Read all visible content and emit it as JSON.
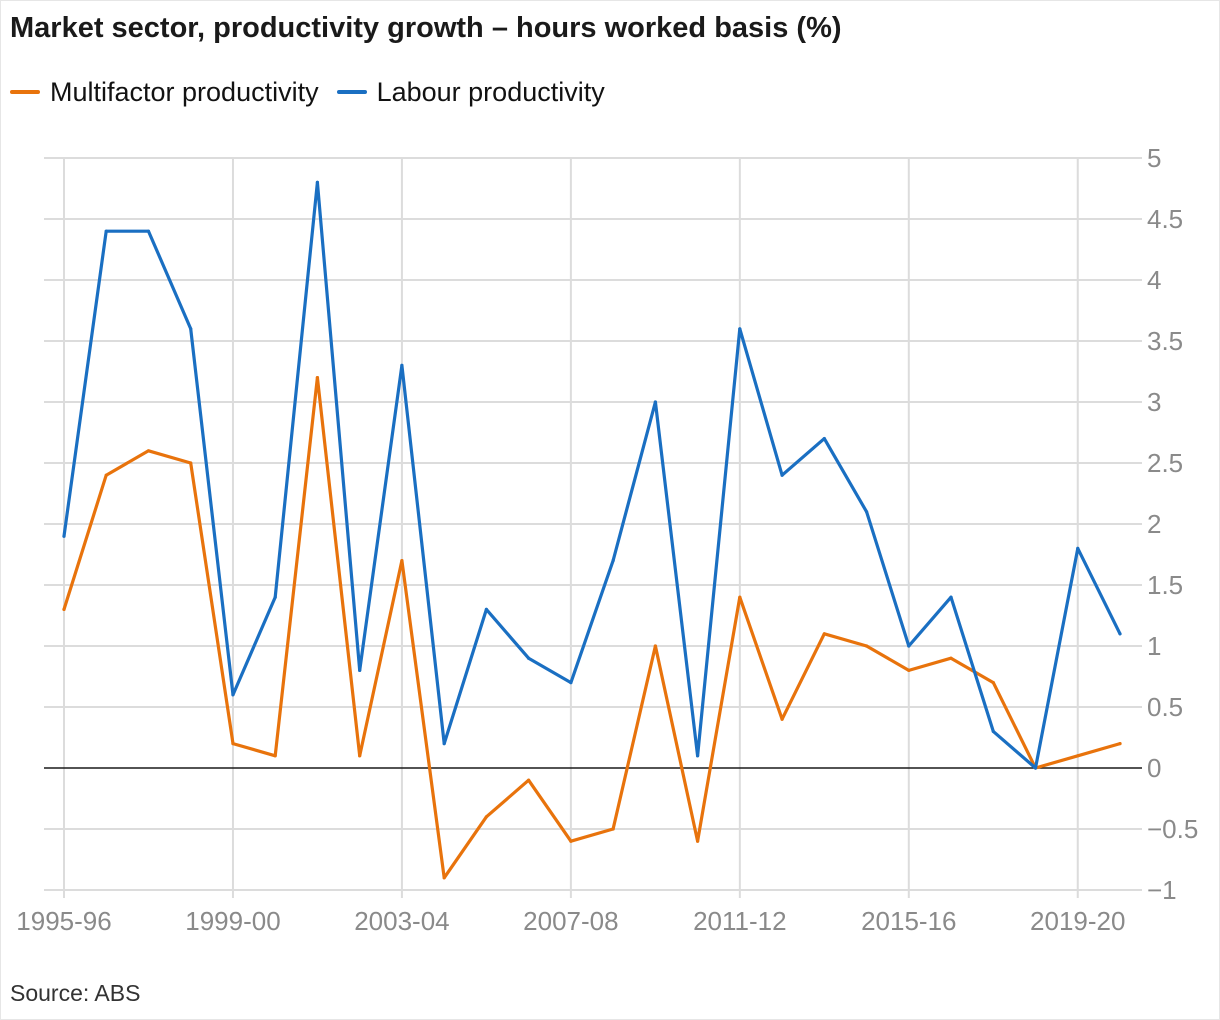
{
  "title": "Market sector, productivity growth – hours worked basis (%)",
  "source": "Source: ABS",
  "legend": [
    {
      "label": "Multifactor productivity",
      "color": "#e8730c"
    },
    {
      "label": "Labour productivity",
      "color": "#1a6fc2"
    }
  ],
  "chart_data": {
    "type": "line",
    "title": "Market sector, productivity growth – hours worked basis (%)",
    "xlabel": "",
    "ylabel": "",
    "ylim": [
      -1,
      5
    ],
    "yticks": [
      5,
      4.5,
      4,
      3.5,
      3,
      2.5,
      2,
      1.5,
      1,
      0.5,
      0,
      -0.5,
      -1
    ],
    "ytick_labels": [
      "5",
      "4.5",
      "4",
      "3.5",
      "3",
      "2.5",
      "2",
      "1.5",
      "1",
      "0.5",
      "0",
      "−0.5",
      "−1"
    ],
    "xtick_labels": [
      "1995-96",
      "1999-00",
      "2003-04",
      "2007-08",
      "2011-12",
      "2015-16",
      "2019-20"
    ],
    "grid": true,
    "legend_position": "top-left",
    "x": [
      "1995-96",
      "1996-97",
      "1997-98",
      "1998-99",
      "1999-00",
      "2000-01",
      "2001-02",
      "2002-03",
      "2003-04",
      "2004-05",
      "2005-06",
      "2006-07",
      "2007-08",
      "2008-09",
      "2009-10",
      "2010-11",
      "2011-12",
      "2012-13",
      "2013-14",
      "2014-15",
      "2015-16",
      "2016-17",
      "2017-18",
      "2018-19",
      "2019-20",
      "2020-21"
    ],
    "series": [
      {
        "name": "Multifactor productivity",
        "color": "#e8730c",
        "values": [
          1.3,
          2.4,
          2.6,
          2.5,
          0.2,
          0.1,
          3.2,
          0.1,
          1.7,
          -0.9,
          -0.4,
          -0.1,
          -0.6,
          -0.5,
          1.0,
          -0.6,
          1.4,
          0.4,
          1.1,
          1.0,
          0.8,
          0.9,
          0.7,
          0.0,
          0.1,
          0.2
        ]
      },
      {
        "name": "Labour productivity",
        "color": "#1a6fc2",
        "values": [
          1.9,
          4.4,
          4.4,
          3.6,
          0.6,
          1.4,
          4.8,
          0.8,
          3.3,
          0.2,
          1.3,
          0.9,
          0.7,
          1.7,
          3.0,
          0.1,
          3.6,
          2.4,
          2.7,
          2.1,
          1.0,
          1.4,
          0.3,
          0.0,
          1.8,
          1.1
        ]
      }
    ]
  }
}
